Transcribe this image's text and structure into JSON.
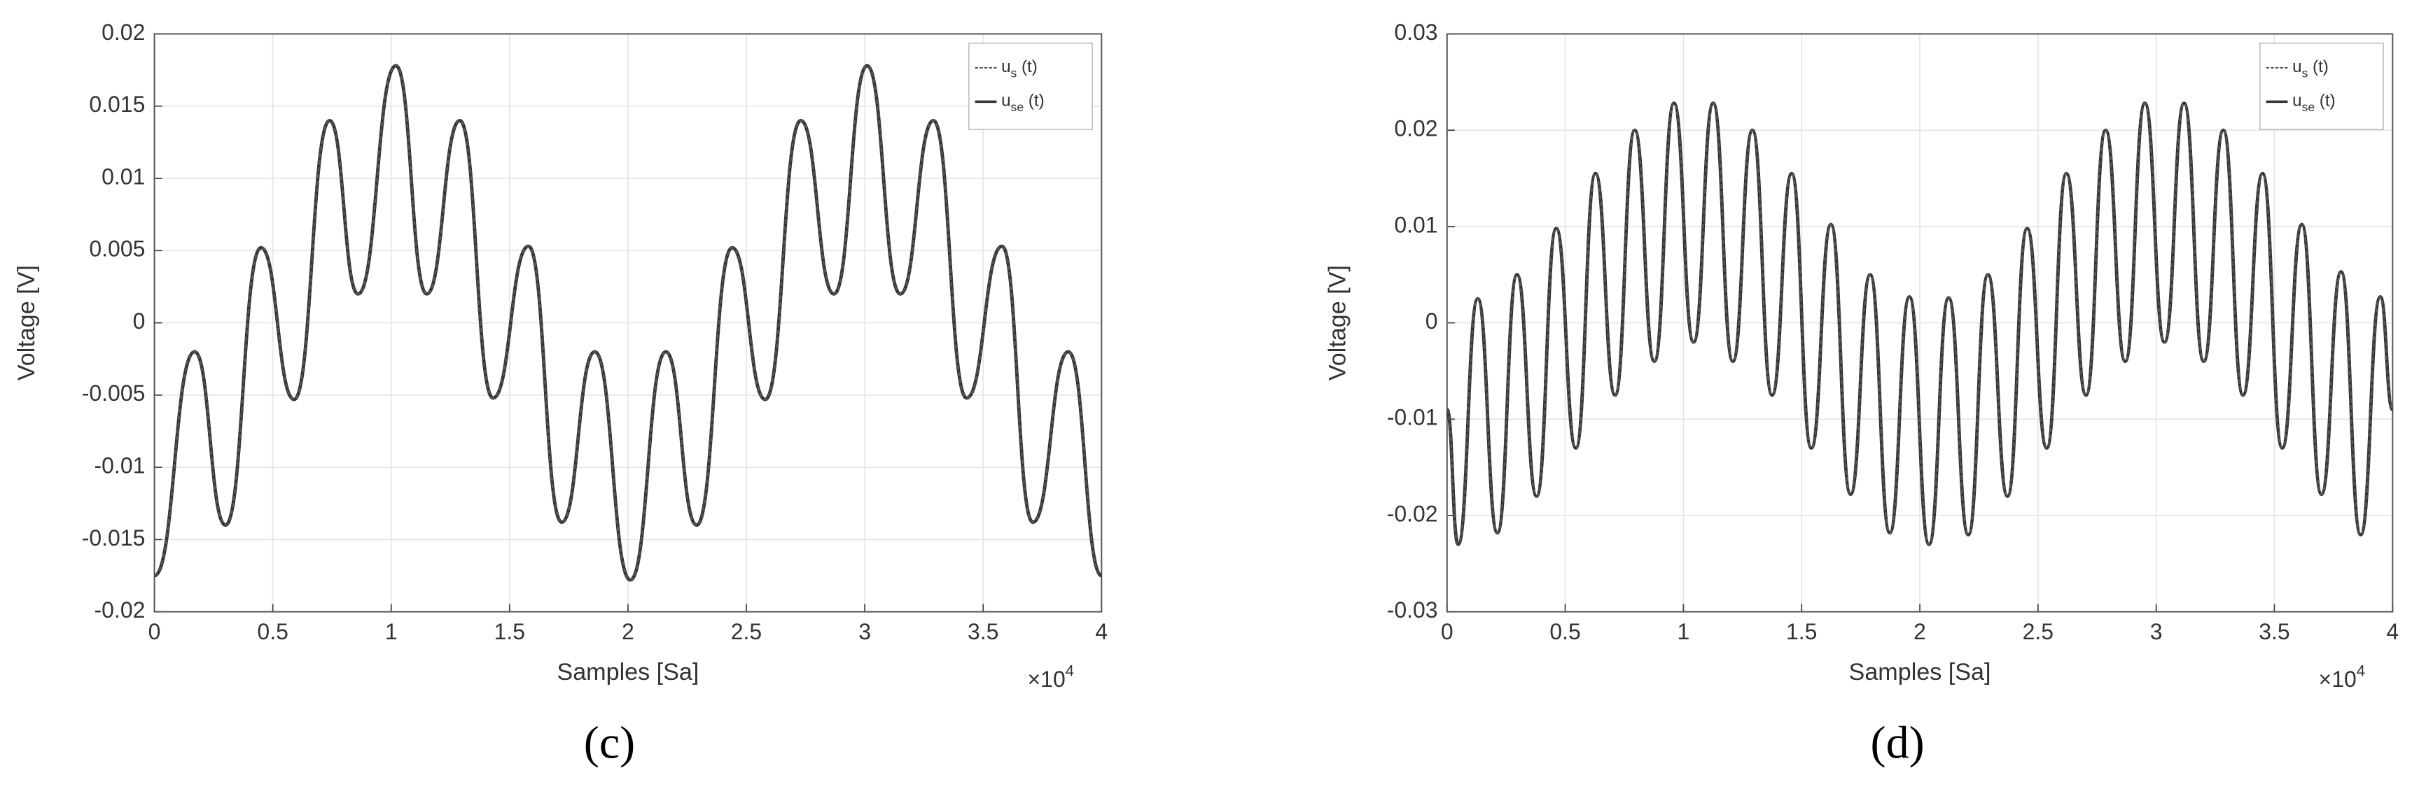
{
  "chart_data": [
    {
      "type": "line",
      "panel_label": "(c)",
      "xlabel": "Samples [Sa]",
      "ylabel": "Voltage [V]",
      "x_multiplier": "×10",
      "x_multiplier_exp": "4",
      "x": [
        0,
        1700,
        3000,
        4500,
        5900,
        7400,
        8600,
        10200,
        11500,
        12900,
        14300,
        15800,
        17200,
        18600,
        20100,
        21600,
        22900,
        24400,
        25800,
        27300,
        28700,
        30100,
        31500,
        32900,
        34300,
        35800,
        37100,
        38600,
        40000
      ],
      "series": [
        {
          "name": "u",
          "subscript": "s",
          "name_suffix": "(t)",
          "color": "#555555",
          "values": [
            -0.0175,
            -0.002,
            -0.014,
            0.0052,
            -0.0053,
            0.014,
            0.002,
            0.0178,
            0.002,
            0.014,
            -0.0052,
            0.0053,
            -0.0138,
            -0.002,
            -0.0178,
            -0.002,
            -0.014,
            0.0052,
            -0.0053,
            0.014,
            0.002,
            0.0178,
            0.002,
            0.014,
            -0.0052,
            0.0053,
            -0.0138,
            -0.002,
            -0.0175
          ]
        },
        {
          "name": "u",
          "subscript": "se",
          "name_suffix": "(t)",
          "color": "#333333",
          "values": [
            -0.0175,
            -0.002,
            -0.014,
            0.0052,
            -0.0053,
            0.014,
            0.002,
            0.0178,
            0.002,
            0.014,
            -0.0052,
            0.0053,
            -0.0138,
            -0.002,
            -0.0178,
            -0.002,
            -0.014,
            0.0052,
            -0.0053,
            0.014,
            0.002,
            0.0178,
            0.002,
            0.014,
            -0.0052,
            0.0053,
            -0.0138,
            -0.002,
            -0.0175
          ]
        }
      ],
      "xlim": [
        0,
        40000
      ],
      "xticks": [
        0,
        {
          "value": 5000,
          "label": "0.5"
        },
        {
          "value": 10000,
          "label": "1"
        },
        {
          "value": 15000,
          "label": "1.5"
        },
        {
          "value": 20000,
          "label": "2"
        },
        {
          "value": 25000,
          "label": "2.5"
        },
        {
          "value": 30000,
          "label": "3"
        },
        {
          "value": 35000,
          "label": "3.5"
        },
        {
          "value": 40000,
          "label": "4"
        }
      ],
      "ylim": [
        -0.02,
        0.02
      ],
      "yticks": [
        -0.02,
        -0.015,
        -0.01,
        -0.005,
        0,
        0.005,
        0.01,
        0.015,
        0.02
      ],
      "grid": true,
      "legend": "upper right"
    },
    {
      "type": "line",
      "panel_label": "(d)",
      "xlabel": "Samples [Sa]",
      "ylabel": "Voltage [V]",
      "x_multiplier": "×10",
      "x_multiplier_exp": "4",
      "x": [
        0,
        470,
        1300,
        2130,
        2960,
        3790,
        4620,
        5450,
        6280,
        7110,
        7940,
        8770,
        9600,
        10430,
        11260,
        12090,
        12920,
        13750,
        14580,
        15410,
        16240,
        17070,
        17900,
        18730,
        19560,
        20390,
        21220,
        22050,
        22880,
        23710,
        24540,
        25370,
        26200,
        27030,
        27860,
        28690,
        29520,
        30350,
        31180,
        32010,
        32840,
        33670,
        34500,
        35330,
        36160,
        36990,
        37820,
        38650,
        39480,
        40000
      ],
      "series": [
        {
          "name": "u",
          "subscript": "s",
          "name_suffix": "(t)",
          "color": "#555555",
          "values": [
            -0.009,
            -0.023,
            0.0025,
            -0.0218,
            0.005,
            -0.018,
            0.0098,
            -0.013,
            0.0155,
            -0.0075,
            0.02,
            -0.004,
            0.0228,
            -0.002,
            0.0228,
            -0.004,
            0.02,
            -0.0075,
            0.0155,
            -0.013,
            0.0102,
            -0.0178,
            0.005,
            -0.0218,
            0.0027,
            -0.023,
            0.0026,
            -0.022,
            0.005,
            -0.018,
            0.0098,
            -0.013,
            0.0155,
            -0.0075,
            0.02,
            -0.004,
            0.0228,
            -0.002,
            0.0228,
            -0.004,
            0.02,
            -0.0075,
            0.0155,
            -0.013,
            0.0102,
            -0.0178,
            0.0053,
            -0.022,
            0.0027,
            -0.009
          ]
        },
        {
          "name": "u",
          "subscript": "se",
          "name_suffix": "(t)",
          "color": "#333333",
          "values": [
            -0.009,
            -0.023,
            0.0025,
            -0.0218,
            0.005,
            -0.018,
            0.0098,
            -0.013,
            0.0155,
            -0.0075,
            0.02,
            -0.004,
            0.0228,
            -0.002,
            0.0228,
            -0.004,
            0.02,
            -0.0075,
            0.0155,
            -0.013,
            0.0102,
            -0.0178,
            0.005,
            -0.0218,
            0.0027,
            -0.023,
            0.0026,
            -0.022,
            0.005,
            -0.018,
            0.0098,
            -0.013,
            0.0155,
            -0.0075,
            0.02,
            -0.004,
            0.0228,
            -0.002,
            0.0228,
            -0.004,
            0.02,
            -0.0075,
            0.0155,
            -0.013,
            0.0102,
            -0.0178,
            0.0053,
            -0.022,
            0.0027,
            -0.009
          ]
        }
      ],
      "xlim": [
        0,
        40000
      ],
      "xticks": [
        0,
        {
          "value": 5000,
          "label": "0.5"
        },
        {
          "value": 10000,
          "label": "1"
        },
        {
          "value": 15000,
          "label": "1.5"
        },
        {
          "value": 20000,
          "label": "2"
        },
        {
          "value": 25000,
          "label": "2.5"
        },
        {
          "value": 30000,
          "label": "3"
        },
        {
          "value": 35000,
          "label": "3.5"
        },
        {
          "value": 40000,
          "label": "4"
        }
      ],
      "ylim": [
        -0.03,
        0.03
      ],
      "yticks": [
        -0.03,
        -0.02,
        -0.01,
        0,
        0.01,
        0.02,
        0.03
      ],
      "grid": true,
      "legend": "upper right"
    }
  ]
}
